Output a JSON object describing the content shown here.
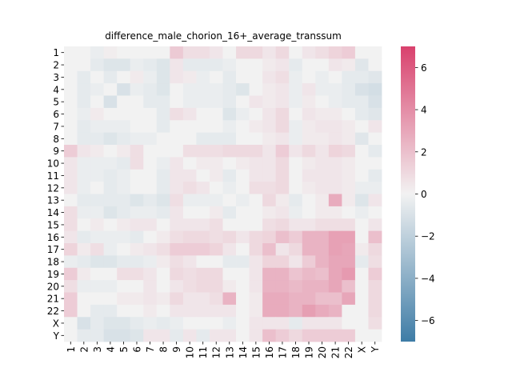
{
  "chart_data": {
    "type": "heatmap",
    "title": "difference_male_chorion_16+_average_transsum",
    "xlabel": "",
    "ylabel": "",
    "row_labels": [
      "1",
      "2",
      "3",
      "4",
      "5",
      "6",
      "7",
      "8",
      "9",
      "10",
      "11",
      "12",
      "13",
      "14",
      "15",
      "16",
      "17",
      "18",
      "19",
      "20",
      "21",
      "22",
      "X",
      "Y"
    ],
    "col_labels": [
      "1",
      "2",
      "3",
      "4",
      "5",
      "6",
      "7",
      "8",
      "9",
      "10",
      "11",
      "12",
      "13",
      "14",
      "15",
      "16",
      "17",
      "18",
      "19",
      "20",
      "21",
      "22",
      "X",
      "Y"
    ],
    "vmin": -7,
    "vmax": 7,
    "colorbar_ticks": [
      -6,
      -4,
      -2,
      0,
      2,
      4,
      6
    ],
    "colormap": {
      "negative": "#3e7ca6",
      "center": "#f2f2f2",
      "positive": "#d9416d"
    },
    "values": [
      [
        0.0,
        0.0,
        -0.3,
        0.2,
        0.0,
        0.0,
        0.0,
        0.0,
        1.6,
        0.8,
        0.8,
        0.5,
        0.0,
        1.0,
        1.0,
        0.5,
        1.0,
        0.0,
        0.5,
        0.8,
        1.2,
        1.5,
        0.0,
        0.0
      ],
      [
        0.0,
        0.0,
        -0.5,
        -0.8,
        -0.8,
        -0.3,
        -0.5,
        -0.8,
        0.5,
        -0.5,
        -0.5,
        -0.5,
        -0.3,
        0.0,
        0.0,
        0.3,
        0.5,
        -0.5,
        0.0,
        0.0,
        0.5,
        0.3,
        -0.7,
        0.0
      ],
      [
        0.0,
        -0.5,
        0.0,
        -0.5,
        0.0,
        0.3,
        -0.3,
        -0.8,
        0.5,
        0.3,
        -0.3,
        0.0,
        -0.5,
        0.0,
        0.0,
        0.5,
        0.8,
        -0.3,
        0.0,
        -0.3,
        0.0,
        -0.5,
        -0.5,
        -0.7
      ],
      [
        0.0,
        -0.5,
        -0.3,
        0.0,
        -1.0,
        -0.3,
        -0.5,
        -0.8,
        0.0,
        -0.3,
        -0.3,
        -0.3,
        -0.5,
        -0.8,
        0.0,
        0.3,
        0.5,
        -0.3,
        0.5,
        -0.3,
        -0.3,
        -0.5,
        -1.0,
        -1.2
      ],
      [
        0.0,
        -0.5,
        0.0,
        -1.0,
        0.0,
        0.0,
        -0.5,
        -0.5,
        0.0,
        -0.3,
        -0.3,
        -0.3,
        -0.5,
        0.0,
        0.5,
        0.3,
        0.5,
        -0.3,
        0.3,
        0.0,
        -0.3,
        -0.5,
        -0.5,
        -1.0
      ],
      [
        0.0,
        -0.3,
        0.3,
        0.0,
        0.0,
        0.0,
        0.0,
        -0.5,
        0.8,
        0.5,
        0.0,
        0.0,
        -0.8,
        -0.3,
        0.0,
        0.5,
        1.0,
        0.0,
        0.5,
        0.3,
        0.3,
        0.0,
        -0.5,
        -0.7
      ],
      [
        0.0,
        -0.5,
        -0.3,
        -0.3,
        -0.3,
        0.0,
        0.0,
        -0.5,
        0.0,
        0.0,
        0.0,
        0.0,
        -0.3,
        0.0,
        0.3,
        0.5,
        1.0,
        -0.3,
        0.3,
        0.5,
        0.5,
        0.3,
        0.0,
        0.5
      ],
      [
        0.0,
        -0.5,
        -0.5,
        -0.8,
        -0.5,
        -0.3,
        -0.3,
        0.0,
        0.0,
        0.0,
        -0.5,
        -0.5,
        -0.5,
        0.0,
        0.0,
        0.3,
        0.5,
        -0.3,
        0.3,
        0.3,
        0.5,
        0.3,
        -0.7,
        0.0
      ],
      [
        1.5,
        0.5,
        0.3,
        0.0,
        0.3,
        0.8,
        0.0,
        0.0,
        0.0,
        0.8,
        0.8,
        0.8,
        1.0,
        1.0,
        1.0,
        0.5,
        1.5,
        0.5,
        1.0,
        0.5,
        1.2,
        1.0,
        0.0,
        -0.5
      ],
      [
        0.5,
        -0.3,
        -0.3,
        -0.3,
        -0.5,
        0.8,
        0.0,
        -0.3,
        0.5,
        0.0,
        0.3,
        0.3,
        0.0,
        0.3,
        0.5,
        0.5,
        1.0,
        0.0,
        0.3,
        0.5,
        0.5,
        0.3,
        0.0,
        0.0
      ],
      [
        0.5,
        -0.3,
        -0.3,
        -0.5,
        -0.3,
        0.0,
        0.0,
        -0.5,
        0.5,
        0.5,
        0.0,
        0.3,
        -0.5,
        0.0,
        0.5,
        0.5,
        1.0,
        0.0,
        0.5,
        0.5,
        0.5,
        0.3,
        0.0,
        -0.5
      ],
      [
        0.5,
        -0.3,
        0.0,
        -0.5,
        -0.3,
        0.0,
        0.0,
        -0.5,
        0.5,
        0.8,
        0.5,
        0.0,
        -0.3,
        0.0,
        0.8,
        0.8,
        1.0,
        0.0,
        0.3,
        0.5,
        0.5,
        0.3,
        -0.3,
        -0.3
      ],
      [
        0.0,
        -0.5,
        -0.5,
        -0.5,
        -0.5,
        -0.8,
        -0.5,
        -0.8,
        0.8,
        -0.3,
        -0.3,
        -0.3,
        0.0,
        -0.3,
        0.0,
        1.0,
        0.3,
        -0.5,
        0.0,
        0.3,
        2.8,
        0.3,
        -0.8,
        0.5
      ],
      [
        0.8,
        -0.3,
        -0.3,
        -0.8,
        -0.5,
        -0.3,
        -0.3,
        -0.5,
        0.5,
        0.0,
        0.0,
        0.3,
        -0.5,
        0.0,
        0.0,
        0.3,
        0.5,
        -0.3,
        0.0,
        0.3,
        0.3,
        0.0,
        -0.3,
        0.0
      ],
      [
        0.8,
        0.0,
        0.3,
        0.0,
        0.3,
        0.5,
        0.5,
        0.0,
        0.5,
        0.5,
        0.5,
        0.8,
        0.0,
        0.0,
        0.0,
        0.8,
        1.0,
        0.5,
        0.5,
        0.8,
        0.8,
        0.8,
        0.0,
        0.5
      ],
      [
        0.5,
        -0.5,
        -0.3,
        -0.3,
        -0.3,
        -0.5,
        0.0,
        0.3,
        0.8,
        1.0,
        1.0,
        0.8,
        1.0,
        0.5,
        1.0,
        1.2,
        2.0,
        1.5,
        2.5,
        2.5,
        3.2,
        3.2,
        0.0,
        2.0
      ],
      [
        1.2,
        0.3,
        0.8,
        -0.3,
        0.0,
        0.3,
        0.5,
        0.8,
        1.5,
        1.5,
        1.5,
        1.2,
        0.5,
        0.0,
        1.0,
        2.0,
        0.5,
        1.0,
        2.5,
        2.5,
        3.2,
        3.0,
        0.3,
        1.0
      ],
      [
        -0.3,
        -0.5,
        -0.8,
        -0.8,
        -0.5,
        -0.5,
        -0.3,
        0.3,
        0.8,
        0.5,
        0.0,
        0.0,
        -0.5,
        -0.5,
        0.5,
        1.2,
        1.2,
        0.5,
        1.5,
        2.5,
        3.0,
        3.0,
        -0.5,
        0.8
      ],
      [
        1.5,
        0.3,
        0.0,
        0.0,
        0.8,
        0.8,
        0.5,
        0.0,
        1.0,
        0.8,
        1.0,
        1.0,
        0.0,
        0.0,
        0.5,
        2.5,
        2.5,
        1.8,
        2.2,
        2.0,
        3.0,
        3.5,
        0.0,
        1.5
      ],
      [
        0.8,
        -0.3,
        -0.3,
        -0.3,
        0.0,
        0.0,
        0.5,
        0.0,
        0.5,
        0.8,
        1.0,
        1.0,
        0.3,
        0.0,
        0.5,
        2.5,
        2.5,
        2.2,
        2.5,
        2.5,
        3.0,
        2.0,
        0.0,
        1.0
      ],
      [
        1.5,
        0.0,
        0.0,
        0.0,
        0.3,
        0.3,
        0.5,
        0.3,
        1.0,
        0.5,
        0.5,
        0.8,
        2.5,
        0.0,
        0.3,
        2.8,
        2.8,
        2.5,
        2.5,
        2.0,
        2.0,
        3.0,
        0.0,
        1.0
      ],
      [
        1.5,
        0.0,
        -0.5,
        -0.5,
        0.0,
        0.0,
        0.3,
        0.0,
        0.5,
        0.5,
        0.5,
        0.5,
        0.5,
        0.0,
        0.3,
        2.8,
        2.8,
        2.5,
        3.3,
        2.8,
        2.5,
        0.0,
        0.0,
        1.0
      ],
      [
        0.0,
        -1.0,
        -0.5,
        -0.8,
        -0.8,
        -0.5,
        -0.3,
        -0.5,
        -0.3,
        0.0,
        0.0,
        0.0,
        -0.3,
        0.0,
        0.5,
        0.5,
        0.5,
        -0.5,
        0.5,
        0.5,
        0.5,
        0.0,
        0.0,
        0.8
      ],
      [
        0.0,
        -0.5,
        -0.5,
        -1.0,
        -1.0,
        -0.8,
        0.5,
        0.5,
        -0.5,
        0.5,
        -0.5,
        0.5,
        0.5,
        0.0,
        0.5,
        2.0,
        1.5,
        1.0,
        1.5,
        1.5,
        1.5,
        1.5,
        0.0,
        0.0
      ]
    ]
  }
}
